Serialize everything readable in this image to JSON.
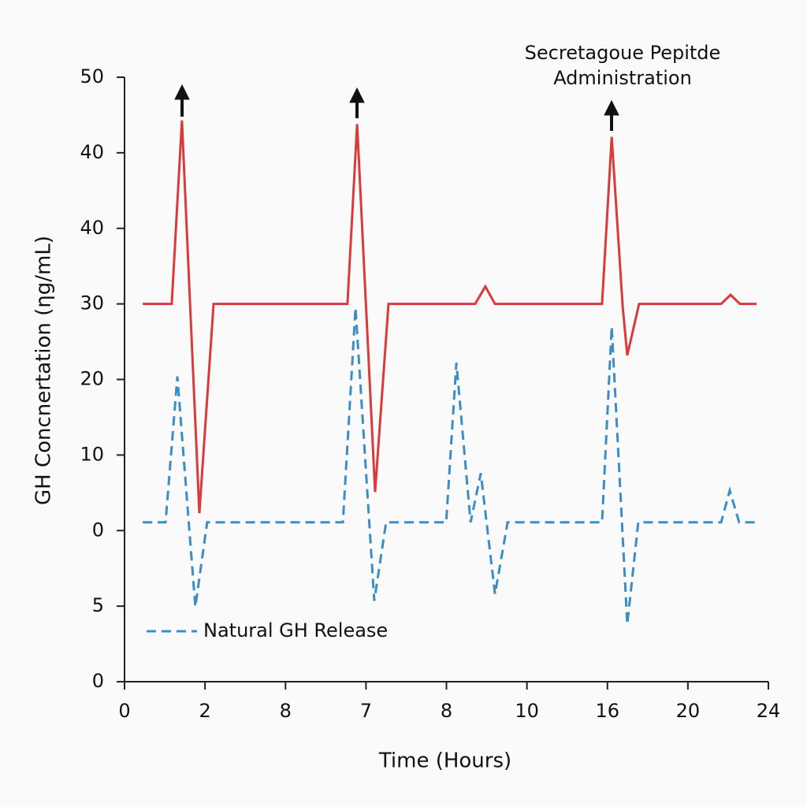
{
  "chart_data": {
    "type": "line",
    "x_label": "Time (Hours)",
    "y_label": "GH Concnertation (ηg/mL)",
    "annotation": [
      "Secretagoue Pepitde",
      "Administration"
    ],
    "xlim": [
      0,
      24
    ],
    "xticks": [
      0,
      {
        "value": 3,
        "label": "2"
      },
      {
        "value": 6,
        "label": "8"
      },
      {
        "value": 9,
        "label": "7"
      },
      {
        "value": 12,
        "label": "8"
      },
      {
        "value": 15,
        "label": "10"
      },
      {
        "value": 18,
        "label": "16"
      },
      {
        "value": 21,
        "label": "20"
      },
      24
    ],
    "ylim": [
      -30,
      50
    ],
    "yticks": [
      50,
      40,
      {
        "value": 30,
        "label": "40"
      },
      {
        "value": 20,
        "label": "30"
      },
      {
        "value": 10,
        "label": "20"
      },
      {
        "value": 0,
        "label": "10"
      },
      {
        "value": -10,
        "label": "0"
      },
      {
        "value": -20,
        "label": "5"
      },
      {
        "value": -30,
        "label": "0"
      }
    ],
    "legend": "lower-left",
    "series": [
      {
        "color": "#d93a3a",
        "dashed": false,
        "x": [
          0.68,
          1.76,
          2.14,
          2.79,
          3.32,
          8.31,
          8.67,
          9.34,
          9.84,
          13.07,
          13.45,
          13.81,
          17.8,
          18.16,
          18.57,
          18.74,
          19.18,
          22.24,
          22.59,
          22.94,
          23.56
        ],
        "values": [
          20,
          20,
          44.3,
          -7.7,
          20,
          20,
          43.8,
          -4.9,
          20,
          20,
          22.3,
          20,
          20,
          42.1,
          19.6,
          13.2,
          20,
          20,
          21.2,
          20,
          20
        ]
      },
      {
        "name": "Natural GH Release",
        "color": "#3b8ec4",
        "dashed": true,
        "x": [
          0.68,
          1.53,
          1.97,
          2.64,
          3.08,
          8.14,
          8.61,
          9.31,
          9.75,
          11.99,
          12.37,
          12.9,
          13.28,
          13.81,
          14.28,
          17.8,
          18.16,
          18.74,
          19.15,
          22.24,
          22.56,
          22.91,
          23.62
        ],
        "values": [
          -8.9,
          -8.9,
          10.4,
          -20.1,
          -8.9,
          -8.9,
          19.5,
          -19.3,
          -8.9,
          -8.9,
          12.2,
          -8.9,
          -2.4,
          -18.4,
          -8.9,
          -8.9,
          17.0,
          -22.4,
          -8.9,
          -8.9,
          -4.7,
          -8.9,
          -8.9
        ]
      }
    ]
  }
}
